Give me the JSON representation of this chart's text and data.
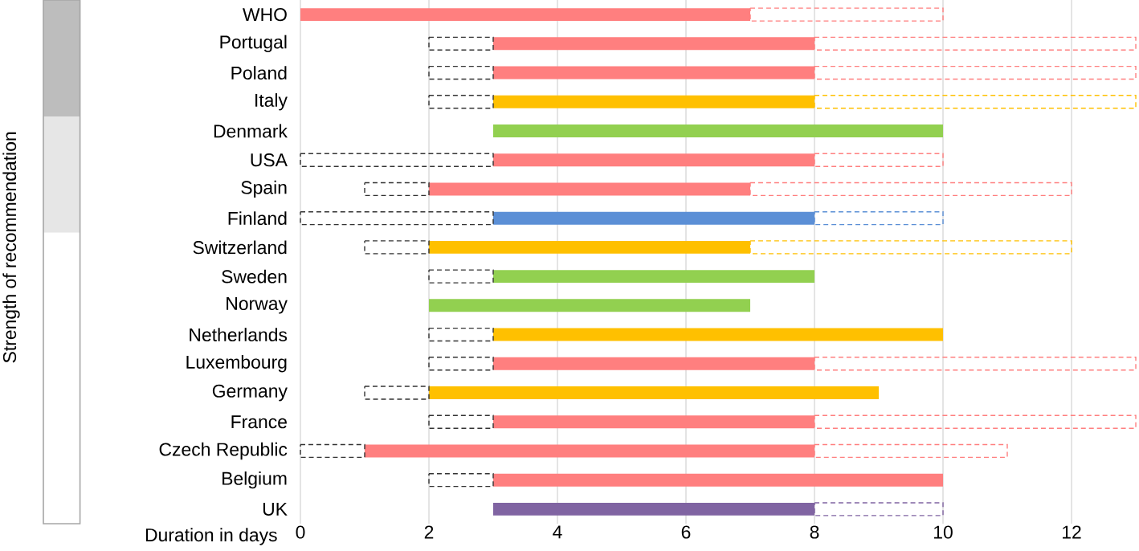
{
  "chart_data": {
    "type": "bar",
    "orientation": "horizontal",
    "xlabel": "Duration in days",
    "categories": [
      "WHO",
      "Portugal",
      "Poland",
      "Italy",
      "Denmark",
      "USA",
      "Spain",
      "Finland",
      "Switzerland",
      "Sweden",
      "Norway",
      "Netherlands",
      "Luxembourg",
      "Germany",
      "France",
      "Czech Republic",
      "Belgium",
      "UK"
    ],
    "series": [
      {
        "line_style": "solid",
        "base": [
          0,
          3,
          3,
          3,
          3,
          3,
          2,
          3,
          2,
          3,
          2,
          3,
          3,
          2,
          3,
          1,
          3,
          3
        ],
        "values": [
          7,
          5,
          5,
          5,
          7,
          5,
          5,
          5,
          5,
          5,
          5,
          7,
          5,
          7,
          5,
          7,
          7,
          5
        ],
        "colors": [
          "#ff7f7f",
          "#ff7f7f",
          "#ff7f7f",
          "#ffc000",
          "#92d050",
          "#ff7f7f",
          "#ff7f7f",
          "#5b8fd6",
          "#ffc000",
          "#92d050",
          "#92d050",
          "#ffc000",
          "#ff7f7f",
          "#ffc000",
          "#ff7f7f",
          "#ff7f7f",
          "#ff7f7f",
          "#8064a2"
        ]
      },
      {
        "line_style": "dashed",
        "color": "#333333",
        "base": [
          null,
          2,
          2,
          2,
          null,
          0,
          1,
          0,
          1,
          2,
          null,
          2,
          2,
          1,
          2,
          0,
          2,
          null
        ],
        "values": [
          null,
          1,
          1,
          1,
          null,
          3,
          1,
          3,
          1,
          1,
          null,
          1,
          1,
          1,
          1,
          1,
          1,
          null
        ]
      },
      {
        "line_style": "dashed",
        "base": [
          7,
          8,
          8,
          8,
          null,
          8,
          7,
          8,
          7,
          null,
          null,
          null,
          8,
          null,
          8,
          8,
          null,
          8
        ],
        "values": [
          3,
          5,
          5,
          5,
          null,
          2,
          5,
          2,
          5,
          null,
          null,
          null,
          5,
          null,
          5,
          3,
          null,
          2
        ],
        "colors": [
          "#ff7f7f",
          "#ff7f7f",
          "#ff7f7f",
          "#ffc000",
          null,
          "#ff7f7f",
          "#ff7f7f",
          "#5b8fd6",
          "#ffc000",
          null,
          null,
          null,
          "#ff7f7f",
          null,
          "#ff7f7f",
          "#ff7f7f",
          null,
          "#8064a2"
        ]
      }
    ],
    "annotations": [
      "Strength of recommendation"
    ],
    "xlim": [
      0,
      13
    ],
    "xticks": [
      0,
      2,
      4,
      6,
      8,
      10,
      12
    ],
    "grid": "x"
  }
}
